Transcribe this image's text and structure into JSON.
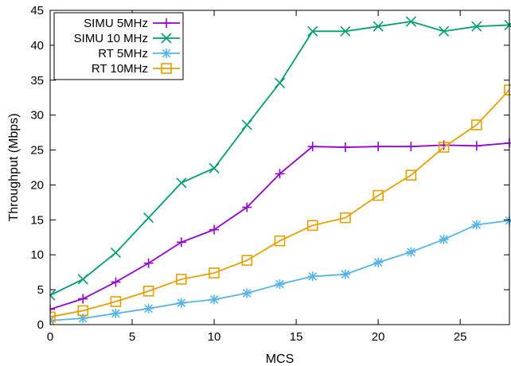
{
  "chart_data": {
    "type": "line",
    "xlabel": "MCS",
    "ylabel": "Throughput (Mbps)",
    "xlim": [
      0,
      28
    ],
    "ylim": [
      0,
      45
    ],
    "xticks": [
      0,
      5,
      10,
      15,
      20,
      25
    ],
    "yticks": [
      0,
      5,
      10,
      15,
      20,
      25,
      30,
      35,
      40,
      45
    ],
    "grid": false,
    "legend_position": "top-left",
    "x": [
      0,
      2,
      4,
      6,
      8,
      10,
      12,
      14,
      16,
      18,
      20,
      22,
      24,
      26,
      28
    ],
    "series": [
      {
        "name": "SIMU 5MHz",
        "color": "#9400d3",
        "marker": "plus",
        "values": [
          2.2,
          3.7,
          6.1,
          8.8,
          11.8,
          13.6,
          16.8,
          21.6,
          25.5,
          25.4,
          25.5,
          25.5,
          25.7,
          25.6,
          26.0
        ]
      },
      {
        "name": "SIMU 10 MHz",
        "color": "#009e73",
        "marker": "cross",
        "values": [
          4.2,
          6.5,
          10.3,
          15.3,
          20.3,
          22.4,
          28.6,
          34.6,
          42.0,
          42.0,
          42.7,
          43.4,
          42.0,
          42.7,
          42.9
        ]
      },
      {
        "name": "RT 5MHz",
        "color": "#56b4e9",
        "marker": "star",
        "values": [
          0.6,
          0.9,
          1.6,
          2.3,
          3.1,
          3.6,
          4.5,
          5.8,
          6.9,
          7.2,
          8.9,
          10.4,
          12.2,
          14.3,
          14.9
        ]
      },
      {
        "name": "RT 10MHz",
        "color": "#e69f00",
        "marker": "square",
        "values": [
          1.1,
          2.0,
          3.3,
          4.8,
          6.5,
          7.4,
          9.2,
          12.0,
          14.2,
          15.3,
          18.5,
          21.4,
          25.4,
          28.6,
          33.6
        ]
      }
    ]
  }
}
